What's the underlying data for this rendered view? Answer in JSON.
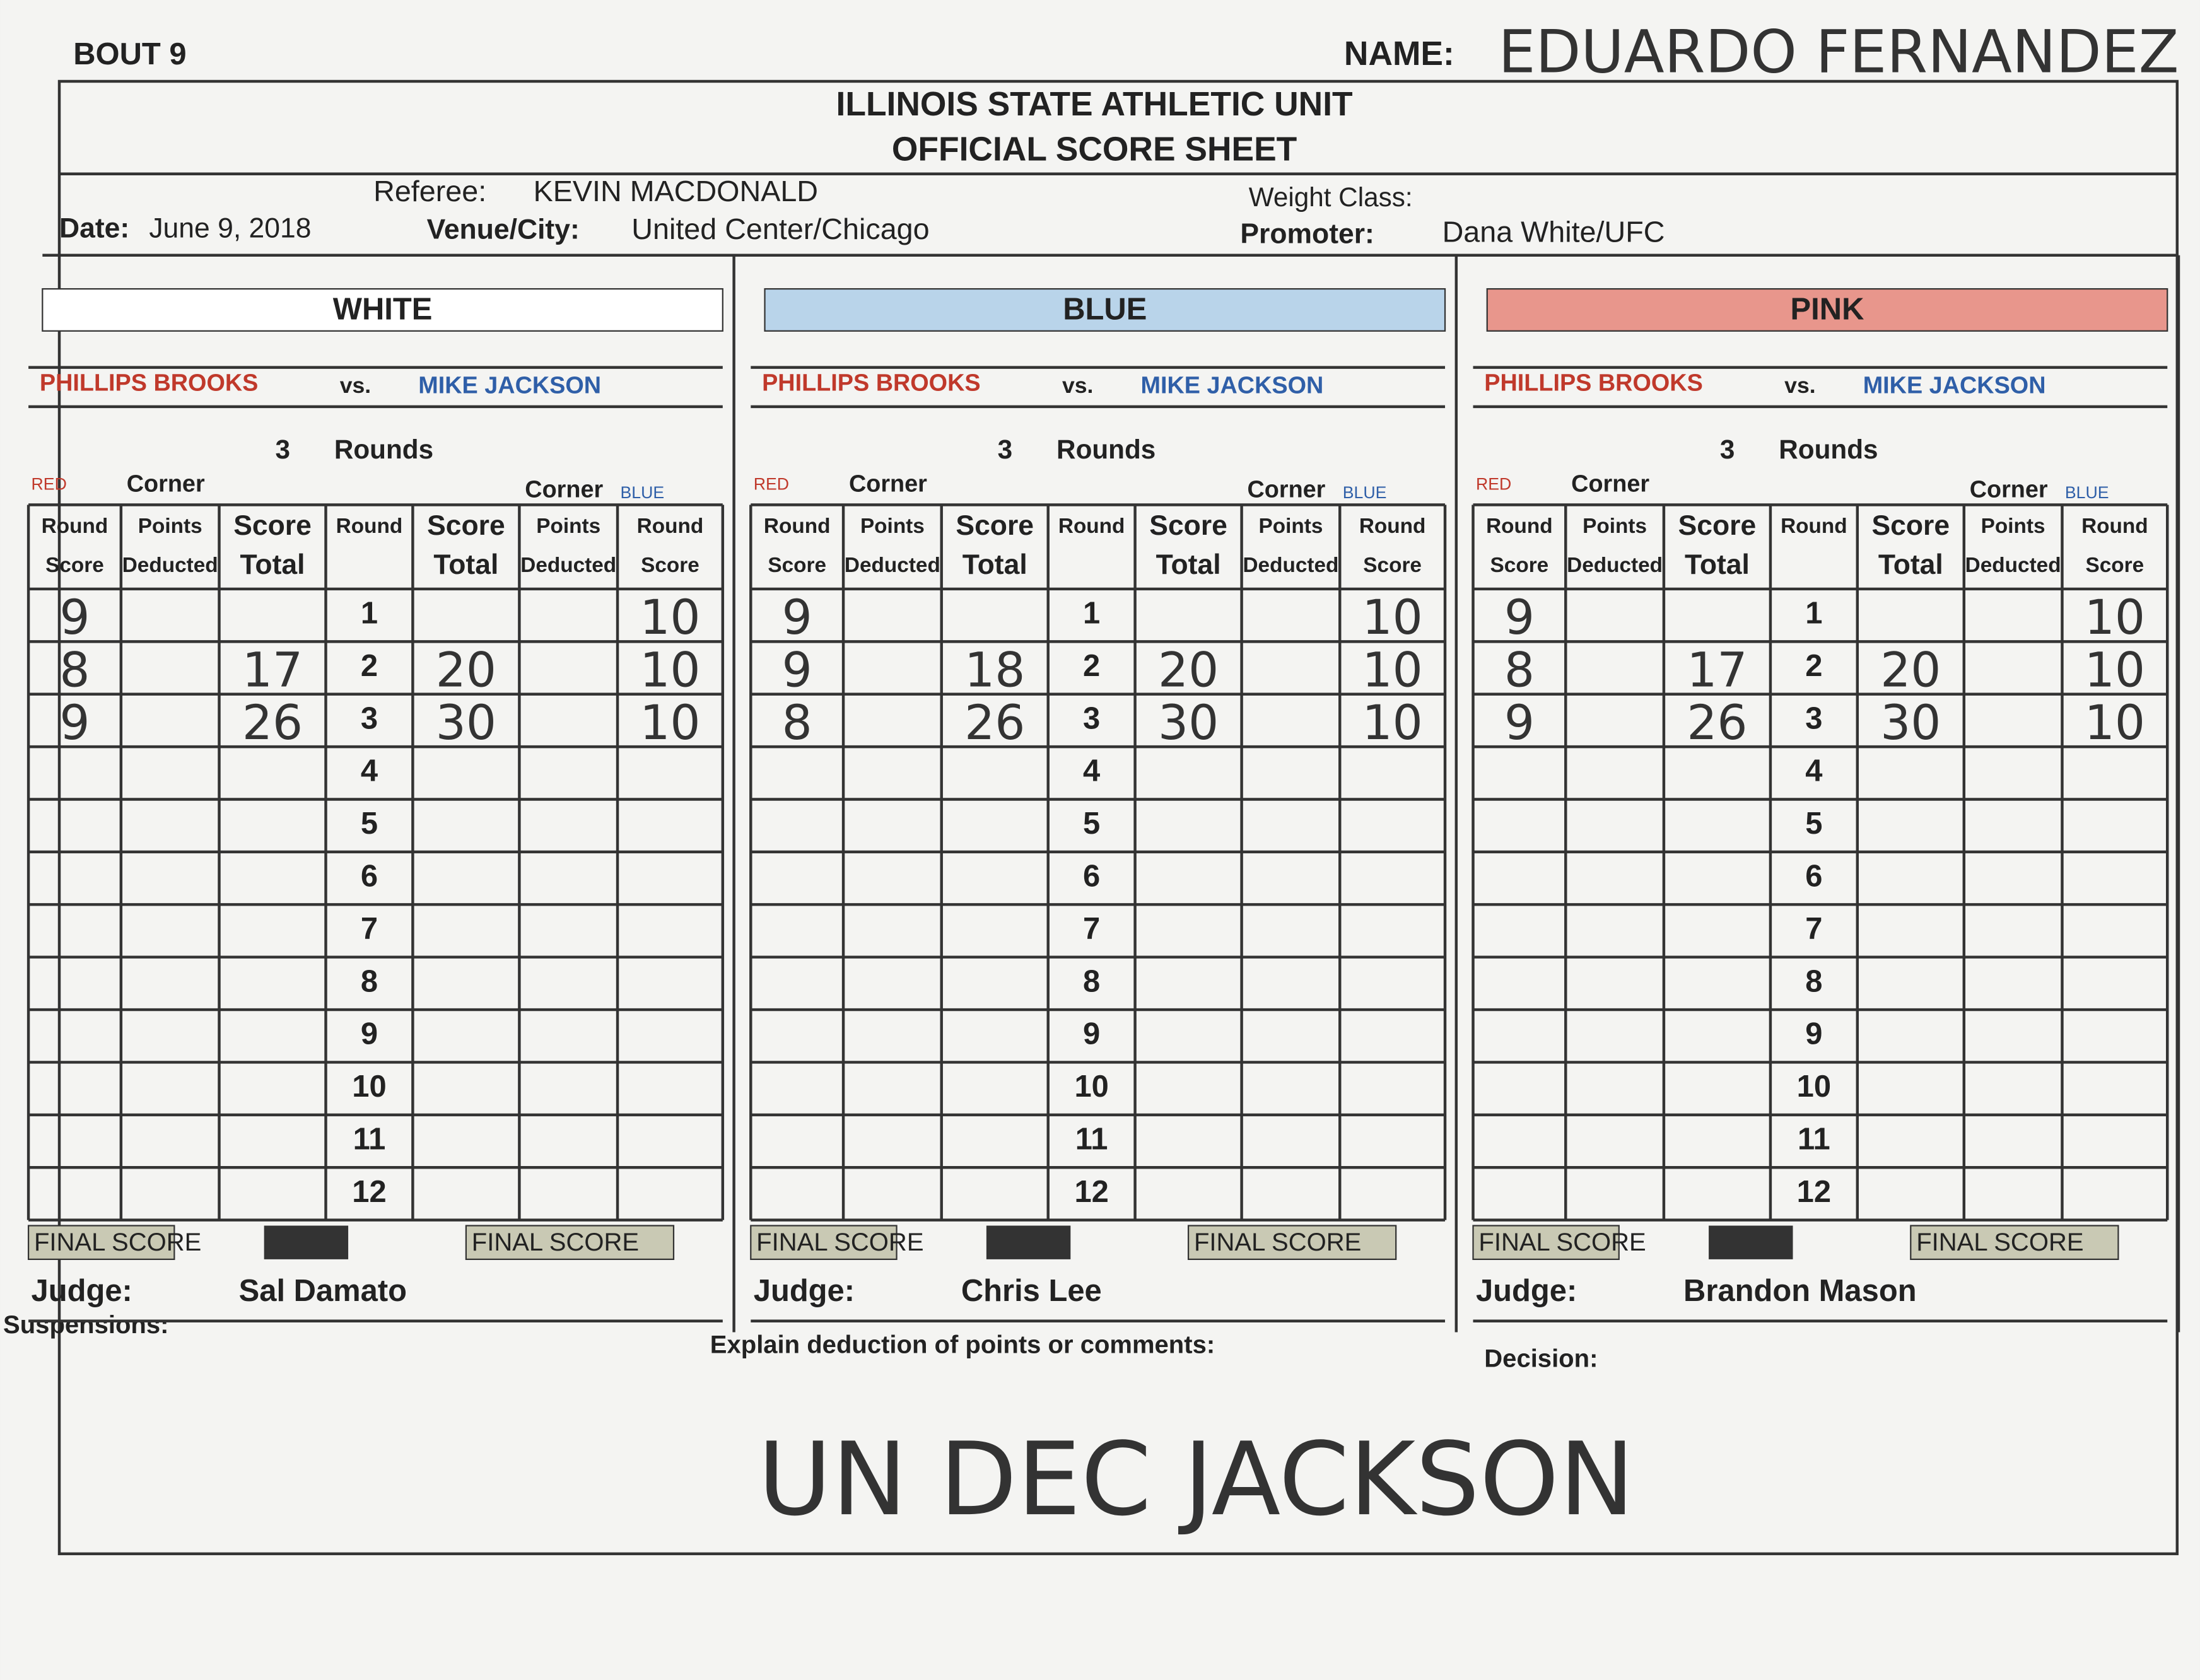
{
  "header": {
    "bout": "BOUT 9",
    "name_label": "NAME:",
    "name": "EDUARDO FERNANDEZ",
    "org": "ILLINOIS STATE ATHLETIC UNIT",
    "sheet": "OFFICIAL SCORE SHEET",
    "referee_label": "Referee:",
    "referee": "KEVIN MACDONALD",
    "date_label": "Date:",
    "date": "June 9, 2018",
    "venue_label": "Venue/City:",
    "venue": "United Center/Chicago",
    "weight_label": "Weight Class:",
    "promoter_label": "Promoter:",
    "promoter": "Dana White/UFC"
  },
  "bout": {
    "red": "PHILLIPS BROOKS",
    "vs": "vs.",
    "blue": "MIKE JACKSON",
    "rounds_count": 3,
    "rounds_label": "Rounds",
    "red_corner": "RED",
    "blue_corner": "BLUE",
    "corner": "Corner"
  },
  "columns": {
    "round": "Round",
    "score": "Score",
    "points": "Points",
    "deducted": "Deducted",
    "total": "Total"
  },
  "rounds": [
    1,
    2,
    3,
    4,
    5,
    6,
    7,
    8,
    9,
    10,
    11,
    12
  ],
  "final_score": "FINAL SCORE",
  "judge_label": "Judge:",
  "cards": [
    {
      "title": "WHITE",
      "color": "#ffffff",
      "red_scores": [
        9,
        8,
        9
      ],
      "red_totals": [
        17,
        26
      ],
      "blue_totals": [
        20,
        30
      ],
      "blue_scores": [
        10,
        10,
        10
      ],
      "judge": "Sal Damato"
    },
    {
      "title": "BLUE",
      "color": "#b9d4ea",
      "red_scores": [
        9,
        9,
        8
      ],
      "red_totals": [
        18,
        26
      ],
      "blue_totals": [
        20,
        30
      ],
      "blue_scores": [
        10,
        10,
        10
      ],
      "judge": "Chris Lee"
    },
    {
      "title": "PINK",
      "color": "#e8968c",
      "red_scores": [
        9,
        8,
        9
      ],
      "red_totals": [
        17,
        26
      ],
      "blue_totals": [
        20,
        30
      ],
      "blue_scores": [
        10,
        10,
        10
      ],
      "judge": "Brandon Mason"
    }
  ],
  "footer": {
    "suspensions": "Suspensions:",
    "explain": "Explain deduction of points or comments:",
    "decision_label": "Decision:",
    "decision": "UN DEC JACKSON"
  }
}
